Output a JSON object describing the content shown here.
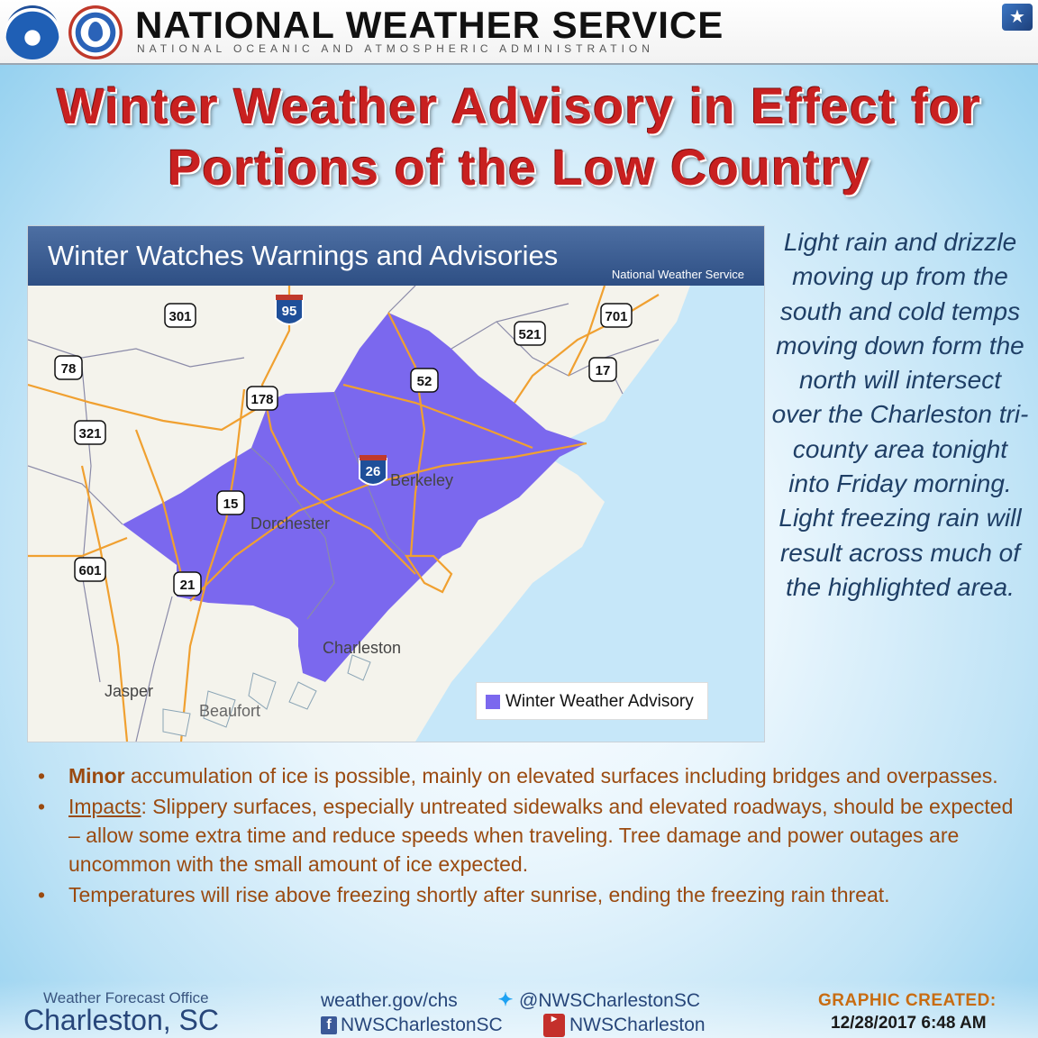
{
  "header": {
    "title": "NATIONAL WEATHER SERVICE",
    "subtitle": "NATIONAL OCEANIC AND ATMOSPHERIC ADMINISTRATION",
    "logos": [
      "noaa-logo",
      "nws-logo"
    ]
  },
  "headline": {
    "line1": "Winter Weather Advisory in Effect for",
    "line2": "Portions of the Low Country"
  },
  "map": {
    "banner_title": "Winter Watches Warnings and Advisories",
    "banner_credit": "National Weather Service",
    "legend_label": "Winter Weather Advisory",
    "legend_color": "#7b68ee",
    "places": [
      "Berkeley",
      "Dorchester",
      "Charleston",
      "Jasper",
      "Beaufort"
    ],
    "route_shields": [
      "95",
      "301",
      "701",
      "521",
      "78",
      "52",
      "17",
      "178",
      "321",
      "26",
      "15",
      "601",
      "21"
    ]
  },
  "narrative": "Light rain and drizzle moving up from the south and cold temps moving down form the north will intersect over the Charleston tri-county area tonight into Friday morning. Light freezing rain will result across much of the highlighted area.",
  "bullets": [
    {
      "lead": "Minor",
      "text": " accumulation of ice is possible, mainly on elevated surfaces including bridges and overpasses."
    },
    {
      "lead": "Impacts",
      "text": ": Slippery surfaces, especially untreated sidewalks and elevated roadways, should be expected – allow some extra time and reduce speeds when traveling. Tree damage and power outages are uncommon with the small amount of ice expected."
    },
    {
      "lead": "",
      "text": "Temperatures will rise above freezing shortly after sunrise, ending the freezing rain threat."
    }
  ],
  "bullet_symbol": "•",
  "footer": {
    "office_label": "Weather Forecast Office",
    "office_name": "Charleston, SC",
    "website": "weather.gov/chs",
    "twitter": "@NWSCharlestonSC",
    "facebook": "NWSCharlestonSC",
    "youtube": "NWSCharleston",
    "graphic_label": "GRAPHIC CREATED:",
    "graphic_date": "12/28/2017 6:48 AM"
  },
  "colors": {
    "headline": "#c82020",
    "advisory": "#7b68ee",
    "ocean": "#c6e7f9",
    "roads": "#f0a030",
    "bullet_text": "#9a4a10",
    "narrative_text": "#1f3f66",
    "graphic_label": "#c86c12"
  }
}
